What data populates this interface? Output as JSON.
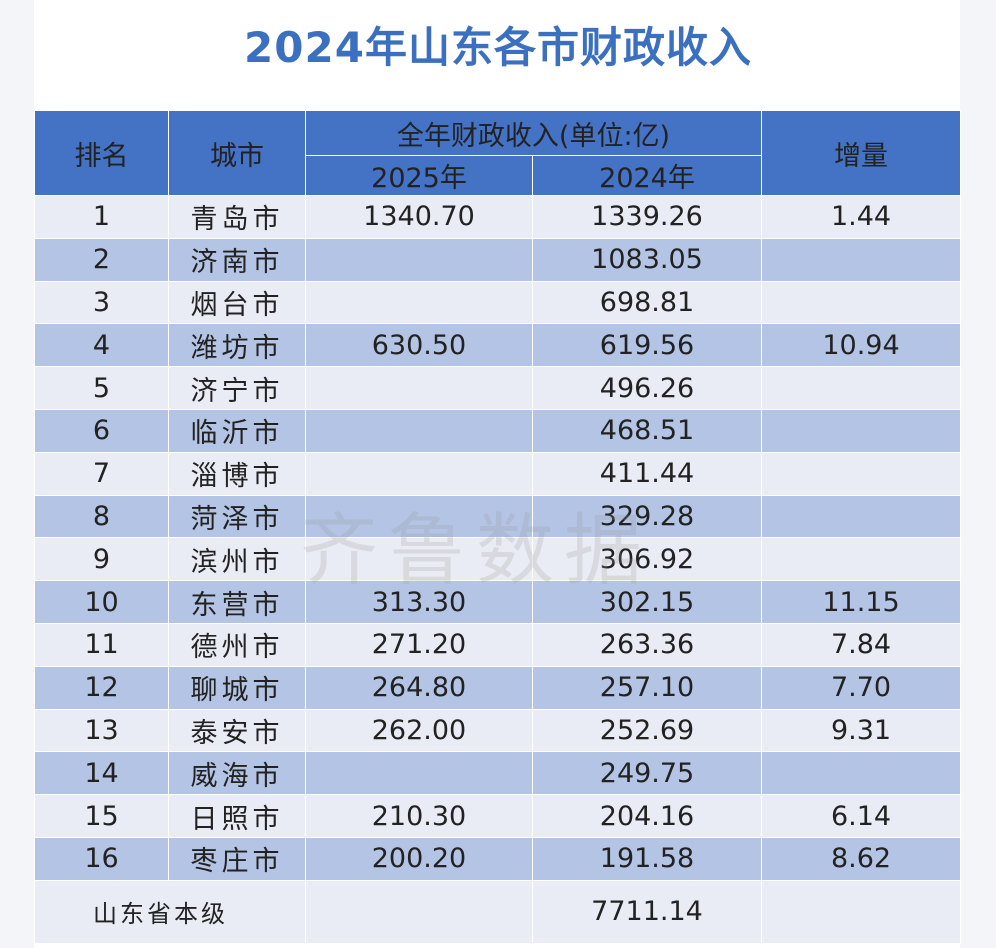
{
  "title": "2024年山东各市财政收入",
  "watermark": "齐鲁数据",
  "headers": {
    "rank": "排名",
    "city": "城市",
    "revenue_group": "全年财政收入(单位:亿)",
    "y2025": "2025年",
    "y2024": "2024年",
    "increase": "增量"
  },
  "rows": [
    {
      "rank": "1",
      "city": "青岛市",
      "y2025": "1340.70",
      "y2024": "1339.26",
      "increase": "1.44"
    },
    {
      "rank": "2",
      "city": "济南市",
      "y2025": "",
      "y2024": "1083.05",
      "increase": ""
    },
    {
      "rank": "3",
      "city": "烟台市",
      "y2025": "",
      "y2024": "698.81",
      "increase": ""
    },
    {
      "rank": "4",
      "city": "潍坊市",
      "y2025": "630.50",
      "y2024": "619.56",
      "increase": "10.94"
    },
    {
      "rank": "5",
      "city": "济宁市",
      "y2025": "",
      "y2024": "496.26",
      "increase": ""
    },
    {
      "rank": "6",
      "city": "临沂市",
      "y2025": "",
      "y2024": "468.51",
      "increase": ""
    },
    {
      "rank": "7",
      "city": "淄博市",
      "y2025": "",
      "y2024": "411.44",
      "increase": ""
    },
    {
      "rank": "8",
      "city": "菏泽市",
      "y2025": "",
      "y2024": "329.28",
      "increase": ""
    },
    {
      "rank": "9",
      "city": "滨州市",
      "y2025": "",
      "y2024": "306.92",
      "increase": ""
    },
    {
      "rank": "10",
      "city": "东营市",
      "y2025": "313.30",
      "y2024": "302.15",
      "increase": "11.15"
    },
    {
      "rank": "11",
      "city": "德州市",
      "y2025": "271.20",
      "y2024": "263.36",
      "increase": "7.84"
    },
    {
      "rank": "12",
      "city": "聊城市",
      "y2025": "264.80",
      "y2024": "257.10",
      "increase": "7.70"
    },
    {
      "rank": "13",
      "city": "泰安市",
      "y2025": "262.00",
      "y2024": "252.69",
      "increase": "9.31"
    },
    {
      "rank": "14",
      "city": "威海市",
      "y2025": "",
      "y2024": "249.75",
      "increase": ""
    },
    {
      "rank": "15",
      "city": "日照市",
      "y2025": "210.30",
      "y2024": "204.16",
      "increase": "6.14"
    },
    {
      "rank": "16",
      "city": "枣庄市",
      "y2025": "200.20",
      "y2024": "191.58",
      "increase": "8.62"
    }
  ],
  "footer": {
    "label": "山东省本级",
    "y2025": "",
    "y2024": "7711.14",
    "increase": ""
  },
  "colors": {
    "header_bg": "#4472c4",
    "title": "#3b6fc0",
    "row_light": "#e9ecf4",
    "row_dark": "#b4c4e4"
  }
}
